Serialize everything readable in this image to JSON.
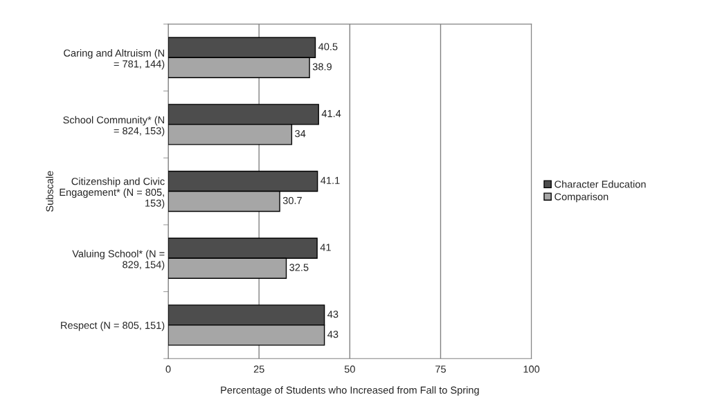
{
  "chart_data": {
    "type": "bar",
    "orientation": "horizontal",
    "categories": [
      "Caring and Altruism (N\n= 781, 144)",
      "School Community* (N\n= 824, 153)",
      "Citizenship and Civic\nEngagement* (N = 805,\n153)",
      "Valuing School* (N =\n829, 154)",
      "Respect (N = 805, 151)"
    ],
    "series": [
      {
        "name": "Character Education",
        "color": "#4d4d4d",
        "values": [
          40.5,
          41.4,
          41.1,
          41,
          43
        ]
      },
      {
        "name": "Comparison",
        "color": "#a6a6a6",
        "values": [
          38.9,
          34,
          30.7,
          32.5,
          43
        ]
      }
    ],
    "xlabel": "Percentage of Students who Increased from Fall to Spring",
    "ylabel": "Subscale",
    "xlim": [
      0,
      100
    ],
    "xticks": [
      0,
      25,
      50,
      75,
      100
    ],
    "grid": "x",
    "legend": "right",
    "data_labels": true
  }
}
